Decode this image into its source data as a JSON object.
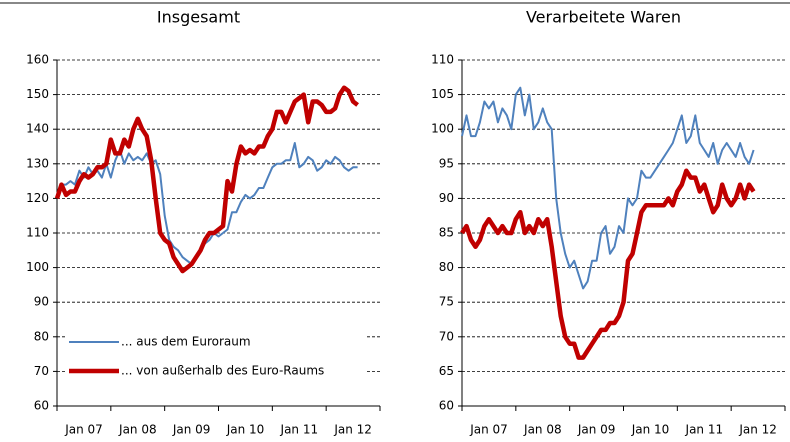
{
  "chart_data": [
    {
      "type": "line",
      "title": "Insgesamt",
      "categories": [
        "Jan 07",
        null,
        null,
        null,
        null,
        null,
        null,
        null,
        null,
        null,
        null,
        null,
        "Jan 08",
        null,
        null,
        null,
        null,
        null,
        null,
        null,
        null,
        null,
        null,
        null,
        "Jan 09",
        null,
        null,
        null,
        null,
        null,
        null,
        null,
        null,
        null,
        null,
        null,
        "Jan 10",
        null,
        null,
        null,
        null,
        null,
        null,
        null,
        null,
        null,
        null,
        null,
        "Jan 11",
        null,
        null,
        null,
        null,
        null,
        null,
        null,
        null,
        null,
        null,
        null,
        "Jan 12",
        null,
        null,
        null,
        null,
        null,
        null,
        null,
        null,
        null,
        null,
        null
      ],
      "series": [
        {
          "name": "... aus dem Euroraum",
          "color": "#4f81bd",
          "width": 2,
          "values": [
            121,
            124,
            124,
            125,
            124,
            128,
            126,
            129,
            127,
            128,
            126,
            130,
            126,
            131,
            134,
            130,
            133,
            131,
            132,
            131,
            133,
            130,
            131,
            127,
            115,
            108,
            106,
            105,
            103,
            102,
            101,
            103,
            105,
            107,
            108,
            110,
            109,
            110,
            111,
            116,
            116,
            119,
            121,
            120,
            121,
            123,
            123,
            126,
            129,
            130,
            130,
            131,
            131,
            136,
            129,
            130,
            132,
            131,
            128,
            129,
            131,
            130,
            132,
            131,
            129,
            128,
            129,
            129,
            null,
            null,
            null,
            null
          ]
        },
        {
          "name": "... von außerhalb des Euro-Raums",
          "color": "#c00000",
          "width": 4.5,
          "values": [
            120,
            124,
            121,
            122,
            122,
            125,
            127,
            126,
            127,
            129,
            129,
            130,
            137,
            133,
            133,
            137,
            135,
            140,
            143,
            140,
            138,
            131,
            120,
            110,
            108,
            107,
            103,
            101,
            99,
            100,
            101,
            103,
            105,
            108,
            110,
            110,
            111,
            112,
            125,
            122,
            130,
            135,
            133,
            134,
            133,
            135,
            135,
            138,
            140,
            145,
            145,
            142,
            145,
            148,
            149,
            150,
            142,
            148,
            148,
            147,
            145,
            145,
            146,
            150,
            152,
            151,
            148,
            147,
            null,
            null,
            null,
            null
          ]
        }
      ],
      "ylim": [
        60,
        160
      ],
      "yticks": [
        60,
        70,
        80,
        90,
        100,
        110,
        120,
        130,
        140,
        150,
        160
      ],
      "grid": true,
      "legend": "lower left"
    },
    {
      "type": "line",
      "title": "Verarbeitete Waren",
      "categories": [
        "Jan 07",
        null,
        null,
        null,
        null,
        null,
        null,
        null,
        null,
        null,
        null,
        null,
        "Jan 08",
        null,
        null,
        null,
        null,
        null,
        null,
        null,
        null,
        null,
        null,
        null,
        "Jan 09",
        null,
        null,
        null,
        null,
        null,
        null,
        null,
        null,
        null,
        null,
        null,
        "Jan 10",
        null,
        null,
        null,
        null,
        null,
        null,
        null,
        null,
        null,
        null,
        null,
        "Jan 11",
        null,
        null,
        null,
        null,
        null,
        null,
        null,
        null,
        null,
        null,
        null,
        "Jan 12",
        null,
        null,
        null,
        null,
        null,
        null,
        null,
        null,
        null,
        null,
        null
      ],
      "series": [
        {
          "color": "#4f81bd",
          "width": 2,
          "values": [
            99,
            102,
            99,
            99,
            101,
            104,
            103,
            104,
            101,
            103,
            102,
            100,
            105,
            106,
            102,
            105,
            100,
            101,
            103,
            101,
            100,
            90,
            85,
            82,
            80,
            81,
            79,
            77,
            78,
            81,
            81,
            85,
            86,
            82,
            83,
            86,
            85,
            90,
            89,
            90,
            94,
            93,
            93,
            94,
            95,
            96,
            97,
            98,
            100,
            102,
            98,
            99,
            102,
            98,
            97,
            96,
            98,
            95,
            97,
            98,
            97,
            96,
            98,
            96,
            95,
            97,
            null,
            null,
            null,
            null,
            null,
            null
          ]
        },
        {
          "color": "#c00000",
          "width": 4.5,
          "values": [
            85,
            86,
            84,
            83,
            84,
            86,
            87,
            86,
            85,
            86,
            85,
            85,
            87,
            88,
            85,
            86,
            85,
            87,
            86,
            87,
            83,
            78,
            73,
            70,
            69,
            69,
            67,
            67,
            68,
            69,
            70,
            71,
            71,
            72,
            72,
            73,
            75,
            81,
            82,
            85,
            88,
            89,
            89,
            89,
            89,
            89,
            90,
            89,
            91,
            92,
            94,
            93,
            93,
            91,
            92,
            90,
            88,
            89,
            92,
            90,
            89,
            90,
            92,
            90,
            92,
            91,
            null,
            null,
            null,
            null,
            null,
            null
          ]
        }
      ],
      "ylim": [
        60,
        110
      ],
      "yticks": [
        60,
        65,
        70,
        75,
        80,
        85,
        90,
        95,
        100,
        105,
        110
      ],
      "grid": true
    }
  ]
}
